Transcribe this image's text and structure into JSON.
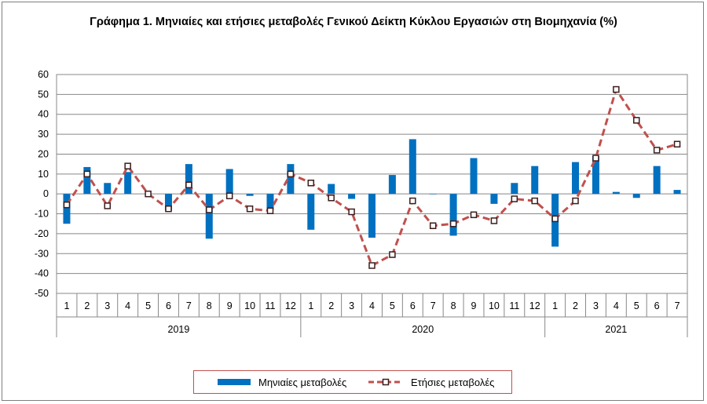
{
  "chart_data": {
    "type": "bar",
    "title": "Γράφημα 1. Μηνιαίες και ετήσιες μεταβολές  Γενικού Δείκτη Κύκλου Εργασιών στη Βιομηχανία (%)",
    "xlabel": "",
    "ylabel": "",
    "ylim": [
      -50,
      60
    ],
    "yticks": [
      "60",
      "50",
      "40",
      "30",
      "20",
      "10",
      "0",
      "-10",
      "-20",
      "-30",
      "-40",
      "-50"
    ],
    "grid": true,
    "legend_position": "bottom",
    "categories": [
      "1",
      "2",
      "3",
      "4",
      "5",
      "6",
      "7",
      "8",
      "9",
      "10",
      "11",
      "12",
      "1",
      "2",
      "3",
      "4",
      "5",
      "6",
      "7",
      "8",
      "9",
      "10",
      "11",
      "12",
      "1",
      "2",
      "3",
      "4",
      "5",
      "6",
      "7"
    ],
    "years": [
      {
        "label": "2019",
        "months": 12
      },
      {
        "label": "2020",
        "months": 12
      },
      {
        "label": "2021",
        "months": 7
      }
    ],
    "series": [
      {
        "name": "Μηνιαίες μεταβολές",
        "kind": "bar",
        "color": "#0070c0",
        "values": [
          -15,
          13.5,
          5.5,
          11,
          0,
          -8.5,
          15,
          -22.5,
          12.5,
          -1,
          -8,
          15,
          -18,
          5,
          -2.5,
          -22,
          9.5,
          27.5,
          0,
          -21,
          18,
          -5,
          5.5,
          14,
          -26.5,
          16,
          19,
          1,
          -2,
          14,
          2
        ]
      },
      {
        "name": "Ετήσιες μεταβολές",
        "kind": "line",
        "color": "#c0504d",
        "values": [
          -5.5,
          10,
          -6,
          14,
          0,
          -7.5,
          4.5,
          -8,
          -1,
          -7.5,
          -8.5,
          10,
          5.5,
          -2,
          -9,
          -36,
          -30.5,
          -3.5,
          -16,
          -15,
          -10.5,
          -13.5,
          -2.5,
          -3.5,
          -12.5,
          -3.5,
          18,
          52.5,
          37,
          22,
          25
        ]
      }
    ]
  }
}
